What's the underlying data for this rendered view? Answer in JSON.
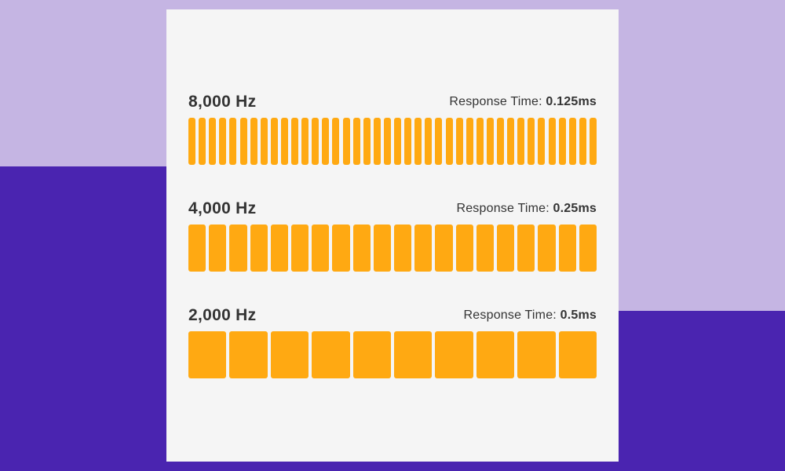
{
  "colors": {
    "background_light": "#c5b5e3",
    "background_dark": "#4a24b0",
    "card": "#f5f5f5",
    "bar": "#ffa912",
    "text": "#333333"
  },
  "rows": [
    {
      "frequency_label": "8,000 Hz",
      "response_label": "Response Time:",
      "response_value": "0.125ms",
      "segments": 40
    },
    {
      "frequency_label": "4,000 Hz",
      "response_label": "Response Time:",
      "response_value": "0.25ms",
      "segments": 20
    },
    {
      "frequency_label": "2,000 Hz",
      "response_label": "Response Time:",
      "response_value": "0.5ms",
      "segments": 10
    }
  ]
}
